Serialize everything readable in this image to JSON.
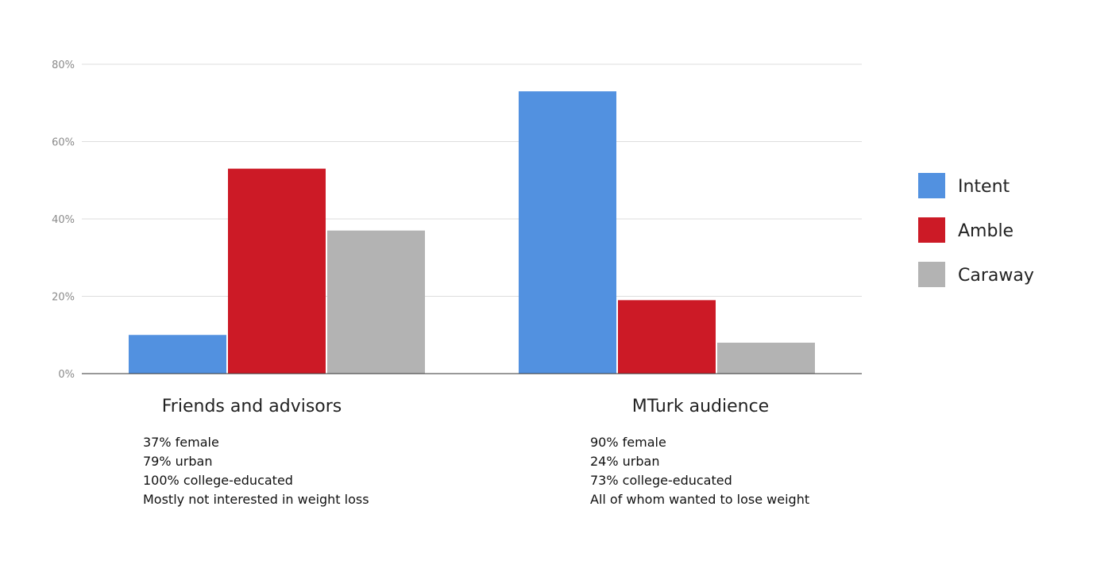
{
  "chart_data": {
    "type": "bar",
    "categories": [
      "Friends and advisors",
      "MTurk audience"
    ],
    "series": [
      {
        "name": "Intent",
        "values": [
          10,
          73
        ],
        "color": "#5291e0"
      },
      {
        "name": "Amble",
        "values": [
          53,
          19
        ],
        "color": "#cc1a26"
      },
      {
        "name": "Caraway",
        "values": [
          37,
          8
        ],
        "color": "#b3b3b3"
      }
    ],
    "ylim": [
      0,
      80
    ],
    "yticks": [
      "0%",
      "20%",
      "40%",
      "60%",
      "80%"
    ],
    "ytick_values": [
      0,
      20,
      40,
      60,
      80
    ],
    "grid": true,
    "legend_position": "right",
    "title": "",
    "xlabel": "",
    "ylabel": ""
  },
  "notes": [
    {
      "lines": [
        "37% female",
        "79% urban",
        "100% college-educated",
        "Mostly not interested in weight loss"
      ]
    },
    {
      "lines": [
        "90% female",
        "24% urban",
        "73% college-educated",
        "All of whom wanted to lose weight"
      ]
    }
  ]
}
